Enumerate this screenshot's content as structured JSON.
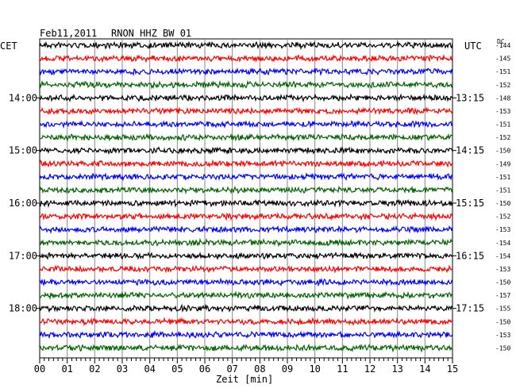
{
  "header": {
    "date": "Feb11,2011",
    "station": "RNON HHZ BW 01",
    "left_zone": "CET",
    "right_zone": "UTC",
    "dc_label": "DC"
  },
  "chart_data": {
    "type": "line",
    "title": "Feb11,2011  RNON HHZ BW 01",
    "xlabel": "Zeit [min]",
    "xlim": [
      0,
      15
    ],
    "x_ticks": [
      "00",
      "01",
      "02",
      "03",
      "04",
      "05",
      "06",
      "07",
      "08",
      "09",
      "10",
      "11",
      "12",
      "13",
      "14",
      "15"
    ],
    "grid": true,
    "series_colors": [
      "#000000",
      "#ff0000",
      "#0000ff",
      "#006400"
    ],
    "left_time_labels": [
      {
        "row": 4,
        "label": "14:00"
      },
      {
        "row": 8,
        "label": "15:00"
      },
      {
        "row": 12,
        "label": "16:00"
      },
      {
        "row": 16,
        "label": "17:00"
      },
      {
        "row": 20,
        "label": "18:00"
      }
    ],
    "right_time_labels": [
      {
        "row": 4,
        "label": "13:15"
      },
      {
        "row": 8,
        "label": "14:15"
      },
      {
        "row": 12,
        "label": "15:15"
      },
      {
        "row": 16,
        "label": "16:15"
      },
      {
        "row": 20,
        "label": "17:15"
      }
    ],
    "dc_values": [
      "-144",
      "-145",
      "-151",
      "-152",
      "-148",
      "-153",
      "-151",
      "-152",
      "-150",
      "-149",
      "-151",
      "-151",
      "-150",
      "-152",
      "-153",
      "-154",
      "-154",
      "-153",
      "-150",
      "-157",
      "-155",
      "-150",
      "-153",
      "-150"
    ]
  }
}
